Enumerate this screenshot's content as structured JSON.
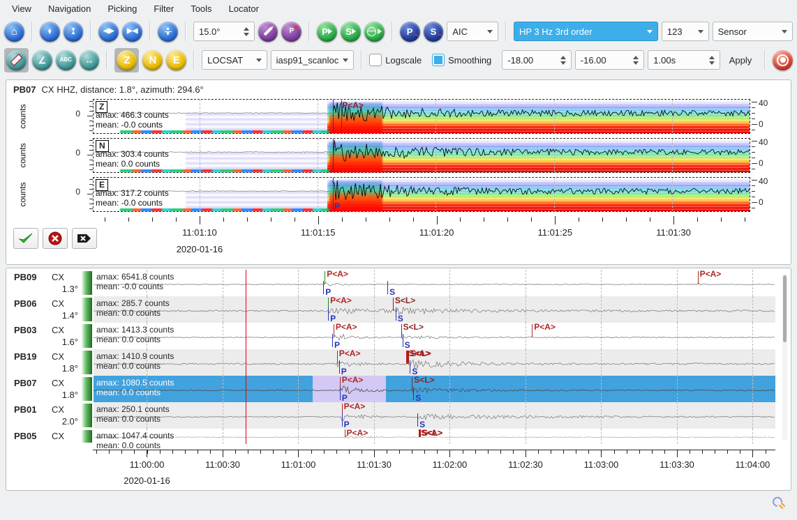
{
  "menu": {
    "items": [
      "View",
      "Navigation",
      "Picking",
      "Filter",
      "Tools",
      "Locator"
    ]
  },
  "toolbar1": {
    "zoom_angle": "15.0°",
    "picker_algorithm": "AIC",
    "filter": "HP 3 Hz 3rd order",
    "components": "123",
    "unit": "Sensor"
  },
  "toolbar2": {
    "locator": "LOCSAT",
    "profile": "iasp91_scanloc",
    "logscale_label": "Logscale",
    "smoothing_label": "Smoothing",
    "spec_min": "-18.00",
    "spec_max": "-16.00",
    "time_window": "1.00s",
    "apply_label": "Apply"
  },
  "picker": {
    "station": "PB07",
    "title_rest": "CX  HHZ, distance: 1.8°, azimuth: 294.6°",
    "freq_max": "40",
    "freq_min": "0",
    "y_unit": "counts",
    "y_zero": "0",
    "pick_phase": "P",
    "pick_assoc": "P<A>",
    "ticks": [
      "11:01:10",
      "11:01:15",
      "11:01:20",
      "11:01:25",
      "11:01:30"
    ],
    "date": "2020-01-16",
    "traces": [
      {
        "label": "Z",
        "amax": "amax: 466.3 counts",
        "mean": "mean: -0.0 counts",
        "wave": {
          "seed": 11,
          "noise": 0.7,
          "onset": 36.5,
          "amp": 16,
          "decay": 9,
          "tail": 4.2
        }
      },
      {
        "label": "N",
        "amax": "amax: 303.4 counts",
        "mean": "mean: 0.0 counts",
        "wave": {
          "seed": 12,
          "noise": 0.7,
          "onset": 36.5,
          "amp": 15,
          "decay": 10,
          "tail": 4.0
        }
      },
      {
        "label": "E",
        "amax": "amax: 317.2 counts",
        "mean": "mean: -0.0 counts",
        "wave": {
          "seed": 13,
          "noise": 0.7,
          "onset": 36.3,
          "amp": 15,
          "decay": 9,
          "tail": 4.2
        }
      }
    ]
  },
  "stations": {
    "ticks": [
      "11:00:00",
      "11:00:30",
      "11:01:00",
      "11:01:30",
      "11:02:00",
      "11:02:30",
      "11:03:00",
      "11:03:30",
      "11:04:00"
    ],
    "date": "2020-01-16",
    "rows": [
      {
        "code": "PB09",
        "net": "CX",
        "dist": "1.3°",
        "amax": "amax: 6541.8 counts",
        "mean": "mean: -0.0 counts",
        "selected": false,
        "wave": {
          "seed": 1,
          "noise": 0.55,
          "onset": 33.9,
          "amp": 2.6,
          "decay": 2,
          "tail": 0.55,
          "s": 88.4,
          "samp": 2.2,
          "sdecay": 0.6
        },
        "picks": [
          {
            "x": 33.9,
            "c": "#1a8c1a",
            "t": "P<A>",
            "tc": "#b02525"
          },
          {
            "x": 33.7,
            "c": "#2533b5",
            "b": "P"
          },
          {
            "x": 43.1,
            "c": "#2533b5",
            "b": "S"
          },
          {
            "x": 88.6,
            "c": "#b02525",
            "t": "P<A>",
            "tc": "#b02525"
          }
        ]
      },
      {
        "code": "PB06",
        "net": "CX",
        "dist": "1.4°",
        "amax": "amax: 285.7 counts",
        "mean": "mean: 0.0 counts",
        "selected": false,
        "wave": {
          "seed": 2,
          "noise": 1.1,
          "onset": 34.4,
          "amp": 3.4,
          "decay": 22,
          "tail": 1.1,
          "s": 43.9,
          "samp": 5,
          "sdecay": 8
        },
        "picks": [
          {
            "x": 34.4,
            "c": "#1a8c1a",
            "t": "P<A>",
            "tc": "#b02525"
          },
          {
            "x": 34.4,
            "c": "#2533b5",
            "b": "P"
          },
          {
            "x": 43.9,
            "c": "#8c1f1f",
            "t": "S<L>",
            "tc": "#8c1f1f"
          },
          {
            "x": 44.3,
            "c": "#2533b5",
            "b": "S"
          }
        ]
      },
      {
        "code": "PB03",
        "net": "CX",
        "dist": "1.6°",
        "amax": "amax: 1413.3 counts",
        "mean": "mean: 0.0 counts",
        "selected": false,
        "wave": {
          "seed": 3,
          "noise": 0.6,
          "onset": 35.2,
          "amp": 8,
          "decay": 2.2,
          "tail": 0.7,
          "s": 45.1,
          "samp": 2.6,
          "sdecay": 6
        },
        "picks": [
          {
            "x": 35.2,
            "c": "#b02525",
            "t": "P<A>",
            "tc": "#b02525"
          },
          {
            "x": 35.0,
            "c": "#2533b5",
            "b": "P"
          },
          {
            "x": 45.1,
            "c": "#8c1f1f",
            "t": "S<L>",
            "tc": "#8c1f1f"
          },
          {
            "x": 45.3,
            "c": "#2533b5",
            "b": "S"
          },
          {
            "x": 64.3,
            "c": "#b02525",
            "t": "P<A>",
            "tc": "#b02525"
          }
        ]
      },
      {
        "code": "PB19",
        "net": "CX",
        "dist": "1.8°",
        "amax": "amax: 1410.9 counts",
        "mean": "mean: 0.0 counts",
        "selected": false,
        "wave": {
          "seed": 4,
          "noise": 1.2,
          "onset": 35.7,
          "amp": 3.4,
          "decay": 4,
          "tail": 1.2,
          "s": 45.9,
          "samp": 7,
          "sdecay": 6
        },
        "picks": [
          {
            "x": 35.7,
            "c": "#b02525",
            "t": "P<A>",
            "tc": "#b02525"
          },
          {
            "x": 36.0,
            "c": "#2533b5",
            "b": "P"
          },
          {
            "x": 45.9,
            "c": "#cc1111",
            "w": 3,
            "t": "S<A>",
            "tc": "#cc1111"
          },
          {
            "x": 46.2,
            "c": "#8c1f1f",
            "t": "S<L>",
            "tc": "#8c1f1f"
          },
          {
            "x": 46.4,
            "c": "#2533b5",
            "b": "S"
          }
        ]
      },
      {
        "code": "PB07",
        "net": "CX",
        "dist": "1.8°",
        "amax": "amax: 1080.5 counts",
        "mean": "mean: 0.0 counts",
        "selected": true,
        "region": {
          "from": 32.1,
          "to": 42.9
        },
        "wave": {
          "seed": 5,
          "noise": 0.7,
          "onset": 36.1,
          "amp": 8,
          "decay": 2.5,
          "tail": 0.9,
          "s": 46.7,
          "samp": 3.6,
          "sdecay": 8
        },
        "picks": [
          {
            "x": 36.1,
            "c": "#b02525",
            "t": "P<A>",
            "tc": "#b02525"
          },
          {
            "x": 36.1,
            "c": "#2533b5",
            "b": "P"
          },
          {
            "x": 46.7,
            "c": "#8c1f1f",
            "t": "S<L>",
            "tc": "#8c1f1f"
          },
          {
            "x": 46.9,
            "c": "#2533b5",
            "b": "S"
          }
        ]
      },
      {
        "code": "PB01",
        "net": "CX",
        "dist": "2.0°",
        "amax": "amax: 250.1 counts",
        "mean": "mean: 0.0 counts",
        "selected": false,
        "wave": {
          "seed": 6,
          "noise": 0.7,
          "onset": 36.4,
          "amp": 6,
          "decay": 3,
          "tail": 0.8,
          "s": 47.5,
          "samp": 3.6,
          "sdecay": 16
        },
        "picks": [
          {
            "x": 36.4,
            "c": "#b02525",
            "t": "P<A>",
            "tc": "#b02525"
          },
          {
            "x": 36.4,
            "c": "#2533b5",
            "b": "P"
          },
          {
            "x": 47.5,
            "c": "#2533b5",
            "b": "S"
          }
        ]
      },
      {
        "code": "PB05",
        "net": "CX",
        "dist": "",
        "amax": "amax: 1047.4 counts",
        "mean": "mean: 0.0 counts",
        "selected": false,
        "wave": {
          "seed": 7,
          "noise": 0.5,
          "onset": 36.8,
          "amp": 4,
          "decay": 3,
          "tail": 0.6
        },
        "picks": [
          {
            "x": 36.8,
            "c": "#b02525",
            "t": "P<A>",
            "tc": "#b02525"
          },
          {
            "x": 47.7,
            "c": "#cc1111",
            "w": 3,
            "t": "S<A>",
            "tc": "#cc1111"
          },
          {
            "x": 47.9,
            "c": "#8c1f1f",
            "t": "S<L>",
            "tc": "#8c1f1f"
          }
        ]
      }
    ]
  }
}
